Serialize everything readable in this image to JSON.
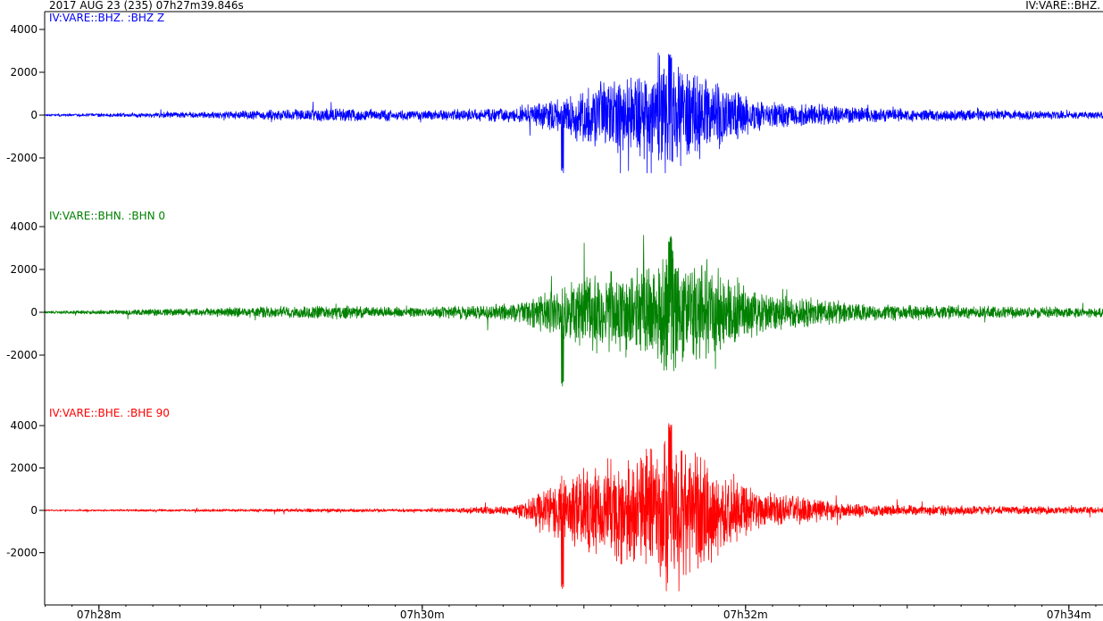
{
  "header": {
    "datetime": "2017 AUG 23 (235)  07h27m39.846s",
    "station_right": "IV:VARE::BHZ."
  },
  "colors": {
    "axis": "#000000",
    "background": "#ffffff"
  },
  "chart_data": [
    {
      "type": "line",
      "channel_label": "IV:VARE::BHZ.  :BHZ Z",
      "color": "#0000ff",
      "yticks": [
        4000,
        2000,
        0,
        -2000
      ],
      "ytick_labels": [
        "4000",
        "2000",
        "0",
        "-2000"
      ],
      "ylim": [
        -3000,
        4000
      ],
      "xticks": [
        "07h28m",
        "07h30m",
        "07h32m",
        "07h34m"
      ],
      "envelope": {
        "t": [
          "07h27m39.8s",
          "07h28m45s",
          "07h29m30s",
          "07h30m00s",
          "07h30m35s",
          "07h30m48s",
          "07h31m05s",
          "07h31m22s",
          "07h31m32s",
          "07h31m48s",
          "07h32m05s",
          "07h32m45s",
          "07h34m10s"
        ],
        "amplitude": [
          50,
          150,
          300,
          200,
          300,
          700,
          1400,
          1800,
          2400,
          1500,
          600,
          300,
          150
        ]
      },
      "peak_max": 2900,
      "peak_min": -2700
    },
    {
      "type": "line",
      "channel_label": "IV:VARE::BHN.  :BHN 0",
      "color": "#008000",
      "yticks": [
        4000,
        2000,
        0,
        -2000
      ],
      "ytick_labels": [
        "4000",
        "2000",
        "0",
        "-2000"
      ],
      "ylim": [
        -3500,
        4000
      ],
      "xticks": [
        "07h28m",
        "07h30m",
        "07h32m",
        "07h34m"
      ],
      "envelope": {
        "t": [
          "07h27m39.8s",
          "07h28m45s",
          "07h29m30s",
          "07h30m00s",
          "07h30m35s",
          "07h30m48s",
          "07h31m05s",
          "07h31m22s",
          "07h31m32s",
          "07h31m48s",
          "07h32m05s",
          "07h32m45s",
          "07h34m10s"
        ],
        "amplitude": [
          50,
          200,
          300,
          200,
          400,
          1000,
          1800,
          2200,
          2700,
          2000,
          900,
          350,
          200
        ]
      },
      "peak_max": 3600,
      "peak_min": -3500
    },
    {
      "type": "line",
      "channel_label": "IV:VARE::BHE.  :BHE 90",
      "color": "#ff0000",
      "yticks": [
        4000,
        2000,
        0,
        -2000
      ],
      "ytick_labels": [
        "4000",
        "2000",
        "0",
        "-2000"
      ],
      "ylim": [
        -4000,
        4500
      ],
      "xticks": [
        "07h28m",
        "07h30m",
        "07h32m",
        "07h34m"
      ],
      "envelope": {
        "t": [
          "07h27m39.8s",
          "07h28m45s",
          "07h29m30s",
          "07h30m00s",
          "07h30m35s",
          "07h30m48s",
          "07h31m05s",
          "07h31m22s",
          "07h31m32s",
          "07h31m48s",
          "07h32m05s",
          "07h32m45s",
          "07h34m10s"
        ],
        "amplitude": [
          30,
          60,
          80,
          60,
          200,
          1200,
          2000,
          2500,
          3000,
          2200,
          800,
          250,
          150
        ]
      },
      "peak_max": 4100,
      "peak_min": -3800
    }
  ]
}
